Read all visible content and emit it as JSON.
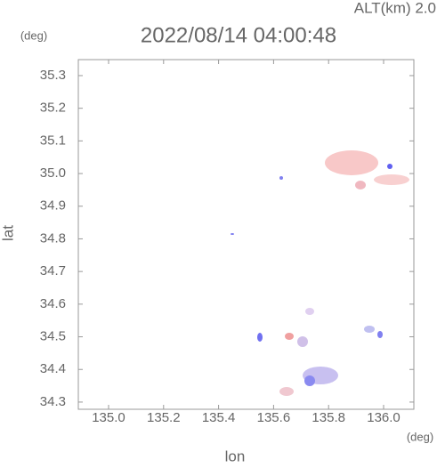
{
  "chart_data": {
    "type": "map",
    "title": "2022/08/14 04:00:48",
    "annotation": "ALT(km) 2.0",
    "x_label": "lon",
    "y_label": "lat",
    "x_unit": "(deg)",
    "y_unit": "(deg)",
    "xlim": [
      134.89,
      136.11
    ],
    "ylim": [
      34.278,
      35.349
    ],
    "xticks": [
      {
        "value": 135,
        "label": "135.0"
      },
      135.2,
      135.4,
      135.6,
      135.8,
      {
        "value": 136,
        "label": "136.0"
      }
    ],
    "yticks": [
      34.3,
      34.4,
      34.5,
      34.6,
      34.7,
      34.8,
      34.9,
      {
        "value": 35,
        "label": "35.0"
      },
      35.1,
      35.2,
      35.3
    ]
  }
}
